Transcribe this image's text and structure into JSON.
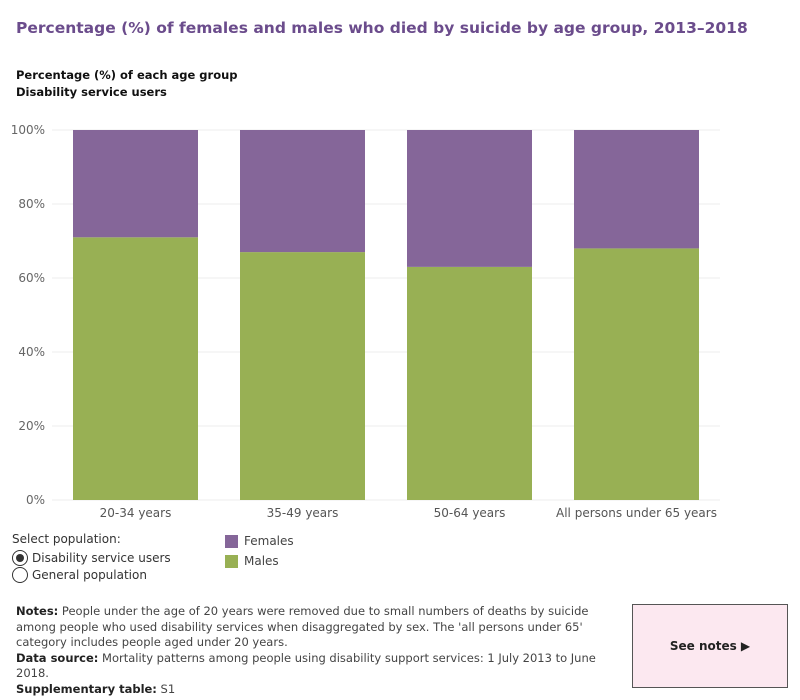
{
  "title": "Percentage (%) of females and males who died by suicide by age group,  2013–2018",
  "subtitle_line1": "Percentage (%) of each age group",
  "subtitle_line2": "Disability service users",
  "colors": {
    "females": "#856699",
    "males": "#98b054",
    "title": "#6b4c8c"
  },
  "chart_data": {
    "type": "bar",
    "stacked": true,
    "categories": [
      "20-34 years",
      "35-49 years",
      "50-64 years",
      "All persons under 65 years"
    ],
    "series": [
      {
        "name": "Males",
        "values": [
          71,
          67,
          63,
          68
        ]
      },
      {
        "name": "Females",
        "values": [
          29,
          33,
          37,
          32
        ]
      }
    ],
    "ylim": [
      0,
      100
    ],
    "yticks": [
      "0%",
      "20%",
      "40%",
      "60%",
      "80%",
      "100%"
    ],
    "ytick_values": [
      0,
      20,
      40,
      60,
      80,
      100
    ],
    "grid": true
  },
  "selector": {
    "label": "Select population:",
    "options": [
      {
        "label": "Disability service users",
        "selected": true
      },
      {
        "label": "General population",
        "selected": false
      }
    ]
  },
  "legend": {
    "females": "Females",
    "males": "Males"
  },
  "notes": {
    "notes_label": "Notes:",
    "notes_text": " People under the age of 20 years were removed due to small numbers of deaths by suicide among people who used disability services when disaggregated by sex. The 'all persons under 65' category includes people aged under 20 years.",
    "source_label": "Data source:",
    "source_text": " Mortality patterns among people using disability support services: 1 July 2013 to June 2018.",
    "table_label": "Supplementary table:",
    "table_text": " S1"
  },
  "see_notes_label": "See notes ▶"
}
